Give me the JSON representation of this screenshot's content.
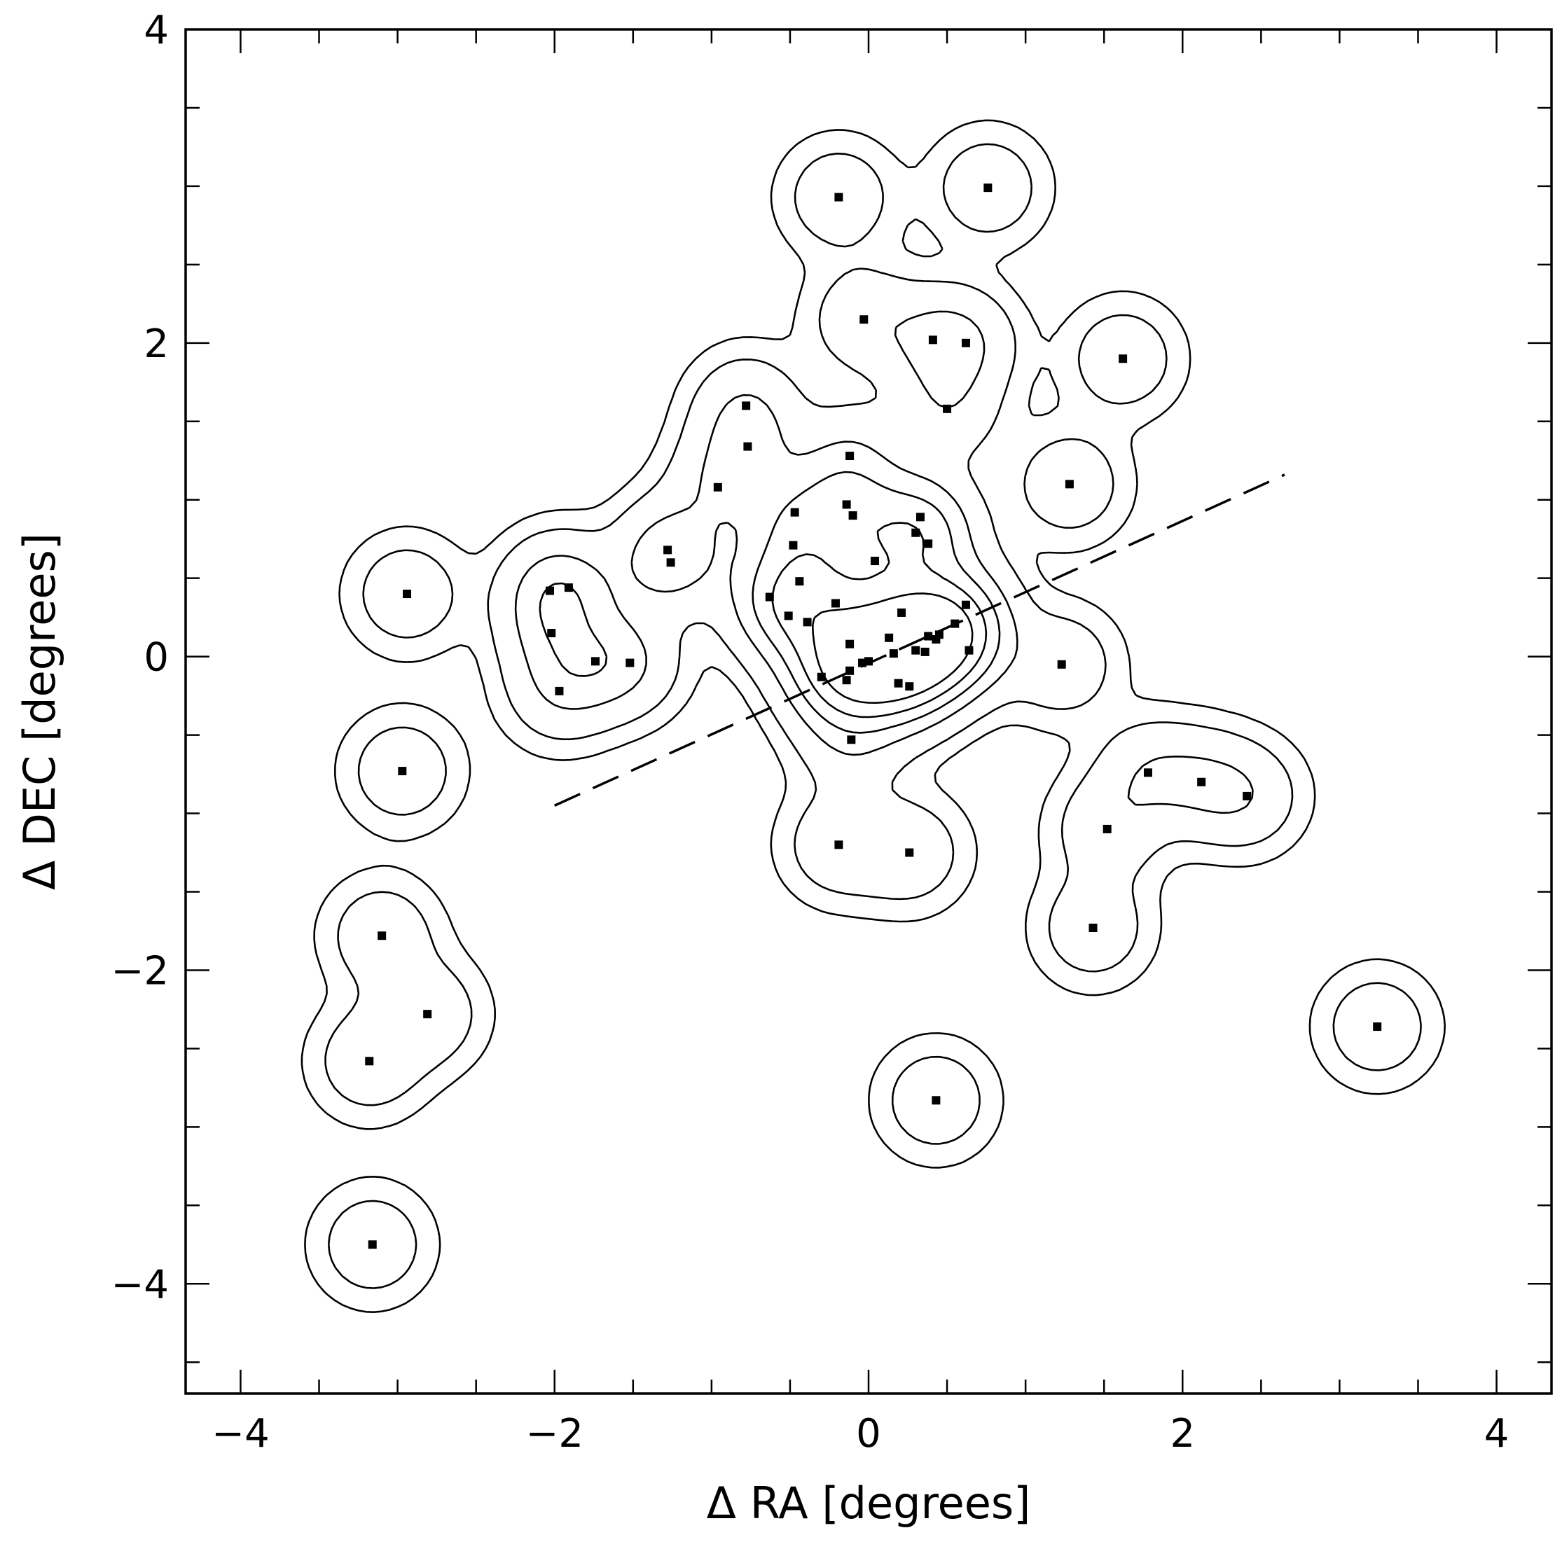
{
  "chart_data": {
    "type": "scatter",
    "xlabel": "Δ RA [degrees]",
    "ylabel": "Δ DEC [degrees]",
    "xlim": [
      -4.35,
      4.35
    ],
    "ylim": [
      -4.7,
      4.0
    ],
    "x_ticks": [
      -4,
      -2,
      0,
      2,
      4
    ],
    "x_tick_labels": [
      "−4",
      "−2",
      "0",
      "2",
      "4"
    ],
    "y_ticks": [
      -4,
      -2,
      0,
      2,
      4
    ],
    "y_tick_labels": [
      "−4",
      "−2",
      "0",
      "2",
      "4"
    ],
    "minor_tick_step": 0.5,
    "grid": false,
    "legend": "none",
    "points": {
      "x": [
        -0.19,
        0.76,
        -0.03,
        0.41,
        0.62,
        0.5,
        1.62,
        -0.78,
        -0.77,
        1.28,
        -0.96,
        -0.12,
        -0.14,
        -0.47,
        -0.1,
        0.33,
        -0.48,
        0.04,
        0.3,
        0.38,
        -1.28,
        -1.26,
        -2.94,
        -2.03,
        -1.91,
        -0.63,
        -0.44,
        -0.21,
        -0.51,
        -0.39,
        0.21,
        0.62,
        0.55,
        -2.02,
        -1.74,
        -1.52,
        -1.97,
        -0.12,
        0.13,
        0.38,
        0.43,
        0.45,
        0.3,
        0.36,
        0.64,
        0.0,
        -0.04,
        -0.12,
        -0.3,
        -0.14,
        0.19,
        0.26,
        0.16,
        1.23,
        -0.11,
        -2.97,
        1.78,
        2.12,
        2.41,
        1.52,
        -0.19,
        0.26,
        1.43,
        -3.1,
        -2.81,
        -3.18,
        3.24,
        0.43,
        -3.16
      ],
      "y": [
        2.93,
        2.99,
        2.15,
        2.02,
        2.0,
        1.58,
        1.9,
        1.6,
        1.34,
        1.1,
        1.08,
        1.28,
        0.97,
        0.92,
        0.9,
        0.89,
        0.71,
        0.61,
        0.79,
        0.72,
        0.68,
        0.6,
        0.4,
        0.42,
        0.44,
        0.38,
        0.48,
        0.34,
        0.26,
        0.22,
        0.28,
        0.33,
        0.21,
        0.15,
        -0.03,
        -0.04,
        -0.22,
        0.08,
        0.12,
        0.13,
        0.11,
        0.14,
        0.04,
        0.03,
        0.04,
        -0.03,
        -0.04,
        -0.09,
        -0.13,
        -0.15,
        -0.17,
        -0.19,
        0.02,
        -0.05,
        -0.53,
        -0.73,
        -0.74,
        -0.8,
        -0.89,
        -1.1,
        -1.2,
        -1.25,
        -1.73,
        -1.78,
        -2.28,
        -2.58,
        -2.36,
        -2.83,
        -3.75
      ]
    },
    "trend_line": {
      "x": [
        -2.0,
        2.65
      ],
      "y": [
        -0.95,
        1.16
      ]
    },
    "density_contours": "nested iso-density contours around the point distribution"
  }
}
